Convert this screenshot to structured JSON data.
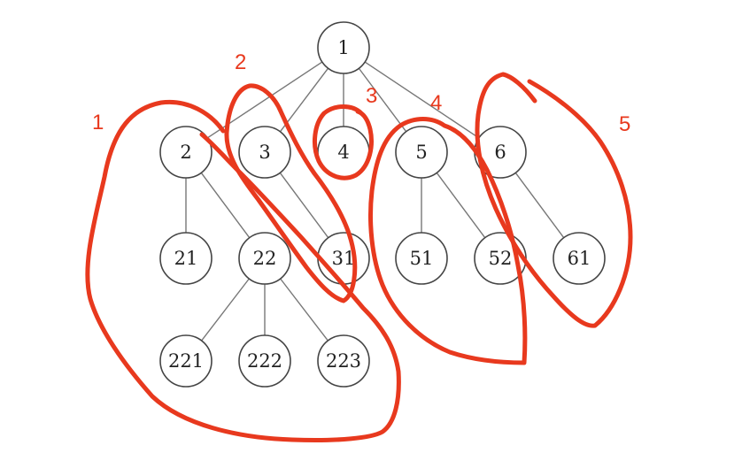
{
  "tree": {
    "nodes": [
      {
        "id": "1",
        "label": "1"
      },
      {
        "id": "2",
        "label": "2"
      },
      {
        "id": "3",
        "label": "3"
      },
      {
        "id": "4",
        "label": "4"
      },
      {
        "id": "5",
        "label": "5"
      },
      {
        "id": "6",
        "label": "6"
      },
      {
        "id": "21",
        "label": "21"
      },
      {
        "id": "22",
        "label": "22"
      },
      {
        "id": "31",
        "label": "31"
      },
      {
        "id": "51",
        "label": "51"
      },
      {
        "id": "52",
        "label": "52"
      },
      {
        "id": "61",
        "label": "61"
      },
      {
        "id": "221",
        "label": "221"
      },
      {
        "id": "222",
        "label": "222"
      },
      {
        "id": "223",
        "label": "223"
      }
    ],
    "edges": [
      [
        "1",
        "2"
      ],
      [
        "1",
        "3"
      ],
      [
        "1",
        "4"
      ],
      [
        "1",
        "5"
      ],
      [
        "1",
        "6"
      ],
      [
        "2",
        "21"
      ],
      [
        "2",
        "22"
      ],
      [
        "3",
        "31"
      ],
      [
        "5",
        "51"
      ],
      [
        "5",
        "52"
      ],
      [
        "6",
        "61"
      ],
      [
        "22",
        "221"
      ],
      [
        "22",
        "222"
      ],
      [
        "22",
        "223"
      ]
    ]
  },
  "annotations": {
    "color": "#e8391e",
    "groups": [
      {
        "id": "g1",
        "label": "1"
      },
      {
        "id": "g2",
        "label": "2"
      },
      {
        "id": "g3",
        "label": "3"
      },
      {
        "id": "g4",
        "label": "4"
      },
      {
        "id": "g5",
        "label": "5"
      }
    ]
  }
}
